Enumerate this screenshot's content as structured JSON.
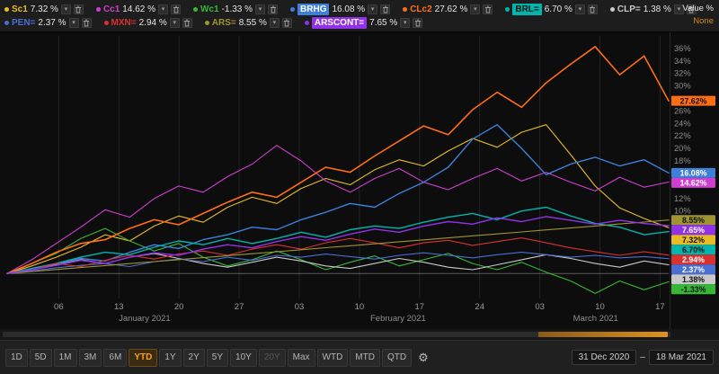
{
  "axis_header": {
    "primary": "Value %",
    "secondary": "None"
  },
  "legend": {
    "rows": [
      [
        "Sc1",
        "Cc1",
        "Wc1",
        "BRHG",
        "CLc2",
        "BRL=",
        "CLP="
      ],
      [
        "PEN=",
        "MXN=",
        "ARS=",
        "ARSCONT="
      ]
    ],
    "icons": {
      "chevron": "▾",
      "delete": "trash-icon"
    }
  },
  "toolbar": {
    "periods": [
      "1D",
      "5D",
      "1M",
      "3M",
      "6M",
      "YTD",
      "1Y",
      "2Y",
      "5Y",
      "10Y",
      "20Y",
      "Max",
      "WTD",
      "MTD",
      "QTD"
    ],
    "active": "YTD",
    "disabled": [
      "20Y"
    ],
    "settings_icon": "⚙",
    "date_range": {
      "start": "31 Dec 2020",
      "separator": "–",
      "end": "18 Mar 2021"
    }
  },
  "chart_data": {
    "type": "line",
    "title": "",
    "ylabel": "Value %",
    "legend_position": "top",
    "grid": "vertical-weekly",
    "ylim": [
      -4,
      38
    ],
    "y_tick_step": 2,
    "total_days": 77,
    "x_range": [
      "31 Dec 2020",
      "18 Mar 2021"
    ],
    "x_ticks": [
      {
        "day": 6,
        "label": "06"
      },
      {
        "day": 13,
        "label": "13"
      },
      {
        "day": 20,
        "label": "20"
      },
      {
        "day": 27,
        "label": "27"
      },
      {
        "day": 34,
        "label": "03"
      },
      {
        "day": 41,
        "label": "10"
      },
      {
        "day": 48,
        "label": "17"
      },
      {
        "day": 55,
        "label": "24"
      },
      {
        "day": 62,
        "label": "03"
      },
      {
        "day": 69,
        "label": "10"
      },
      {
        "day": 76,
        "label": "17"
      }
    ],
    "months": [
      {
        "label": "January 2021",
        "day": 16
      },
      {
        "label": "February 2021",
        "day": 45.5
      },
      {
        "label": "March 2021",
        "day": 68.5
      }
    ],
    "series": [
      {
        "name": "Sc1",
        "color": "#e8bc26",
        "label_text": "#111111",
        "highlight": false,
        "value_label": "7.32 %",
        "last_value": 7.32,
        "values": [
          0,
          1.2,
          2.6,
          4.2,
          6.2,
          5.2,
          7.6,
          9.2,
          8.2,
          10.6,
          12.2,
          11.2,
          13.6,
          15.2,
          14.2,
          16.6,
          18.2,
          17.2,
          19.6,
          21.6,
          20.2,
          22.6,
          23.8,
          19.0,
          14.0,
          10.5,
          8.8,
          7.32
        ]
      },
      {
        "name": "Cc1",
        "color": "#cf3ecf",
        "label_text": "#ffffff",
        "highlight": false,
        "value_label": "14.62 %",
        "last_value": 14.62,
        "values": [
          0,
          2.2,
          4.8,
          7.4,
          10.2,
          9.0,
          12.0,
          14.0,
          13.0,
          15.5,
          17.5,
          20.5,
          18.0,
          14.8,
          13.0,
          15.2,
          16.8,
          14.6,
          13.4,
          15.2,
          16.8,
          14.8,
          16.2,
          14.6,
          13.2,
          15.4,
          13.8,
          14.62
        ]
      },
      {
        "name": "Wc1",
        "color": "#36b836",
        "label_text": "#111111",
        "highlight": false,
        "value_label": "-1.33 %",
        "last_value": -1.33,
        "values": [
          0,
          1.6,
          3.2,
          5.6,
          7.2,
          5.2,
          3.6,
          4.8,
          2.6,
          1.2,
          2.2,
          3.6,
          2.2,
          0.6,
          1.8,
          2.8,
          1.2,
          2.2,
          3.2,
          1.6,
          0.6,
          1.8,
          0.2,
          -1.2,
          -3.2,
          -1.2,
          -2.6,
          -1.33
        ]
      },
      {
        "name": "BRHG",
        "color": "#3d7fd9",
        "label_text": "#ffffff",
        "highlight": true,
        "value_label": "16.08 %",
        "last_value": 16.08,
        "values": [
          0,
          0.6,
          1.6,
          2.4,
          2.0,
          3.4,
          4.6,
          4.0,
          5.4,
          6.2,
          7.4,
          7.0,
          8.6,
          9.8,
          11.2,
          10.6,
          12.8,
          14.6,
          17.0,
          21.5,
          23.8,
          20.0,
          15.8,
          17.5,
          18.6,
          17.2,
          18.2,
          16.08
        ]
      },
      {
        "name": "CLc2",
        "color": "#ff6e14",
        "label_text": "#111111",
        "highlight": false,
        "value_label": "27.62 %",
        "last_value": 27.62,
        "values": [
          0,
          1.6,
          3.4,
          4.8,
          5.4,
          7.2,
          8.6,
          7.8,
          9.6,
          11.4,
          13.0,
          12.2,
          14.6,
          17.0,
          16.2,
          18.8,
          21.2,
          23.6,
          22.2,
          26.2,
          29.0,
          26.6,
          30.5,
          33.5,
          36.3,
          31.8,
          34.8,
          27.62
        ]
      },
      {
        "name": "BRL=",
        "color": "#00b5ad",
        "label_text": "#111111",
        "highlight": true,
        "value_label": "6.70 %",
        "last_value": 6.7,
        "values": [
          0,
          0.8,
          1.6,
          2.6,
          3.4,
          3.0,
          4.2,
          5.2,
          4.6,
          5.6,
          4.8,
          5.6,
          6.6,
          5.8,
          7.0,
          7.6,
          7.2,
          8.2,
          9.0,
          9.6,
          8.6,
          10.0,
          10.6,
          9.2,
          8.0,
          7.4,
          6.2,
          6.7
        ]
      },
      {
        "name": "CLP=",
        "color": "#c9c9c9",
        "label_text": "#111111",
        "highlight": false,
        "value_label": "1.38 %",
        "last_value": 1.38,
        "values": [
          0,
          0.6,
          1.4,
          2.2,
          1.6,
          2.6,
          3.2,
          2.4,
          1.6,
          1.0,
          1.8,
          2.6,
          2.0,
          1.2,
          0.8,
          1.6,
          2.4,
          1.8,
          1.0,
          0.6,
          1.4,
          2.2,
          3.0,
          2.4,
          1.6,
          1.0,
          2.0,
          1.38
        ]
      },
      {
        "name": "PEN=",
        "color": "#4a6fd4",
        "label_text": "#ffffff",
        "highlight": false,
        "value_label": "2.37 %",
        "last_value": 2.37,
        "values": [
          0,
          0.4,
          0.9,
          1.3,
          1.6,
          1.1,
          1.9,
          2.3,
          1.9,
          2.6,
          2.1,
          2.9,
          2.6,
          3.1,
          2.7,
          2.3,
          2.9,
          3.3,
          2.9,
          2.5,
          3.0,
          3.4,
          3.0,
          2.6,
          2.9,
          2.5,
          2.7,
          2.37
        ]
      },
      {
        "name": "MXN=",
        "color": "#d93030",
        "label_text": "#ffffff",
        "highlight": false,
        "value_label": "2.94 %",
        "last_value": 2.94,
        "values": [
          0,
          0.6,
          1.6,
          1.1,
          2.1,
          2.9,
          2.3,
          3.1,
          3.6,
          2.9,
          3.9,
          4.6,
          3.9,
          4.9,
          5.6,
          4.9,
          4.1,
          4.9,
          5.3,
          4.5,
          5.1,
          5.7,
          4.9,
          4.1,
          3.5,
          2.9,
          3.5,
          2.94
        ]
      },
      {
        "name": "ARS=",
        "color": "#9e9431",
        "label_text": "#111111",
        "highlight": false,
        "value_label": "8.55 %",
        "last_value": 8.55,
        "values": [
          0,
          0.32,
          0.63,
          0.95,
          1.27,
          1.58,
          1.9,
          2.22,
          2.53,
          2.85,
          3.17,
          3.48,
          3.8,
          4.12,
          4.43,
          4.75,
          5.07,
          5.38,
          5.7,
          6.02,
          6.33,
          6.65,
          6.97,
          7.28,
          7.6,
          7.92,
          8.23,
          8.55
        ]
      },
      {
        "name": "ARSCONT=",
        "color": "#9232e8",
        "label_text": "#ffffff",
        "highlight": true,
        "value_label": "7.65 %",
        "last_value": 7.65,
        "values": [
          0,
          0.6,
          1.3,
          2.1,
          1.6,
          2.6,
          3.3,
          2.9,
          3.9,
          4.6,
          4.1,
          5.1,
          5.9,
          5.3,
          6.3,
          7.1,
          6.6,
          7.6,
          8.3,
          7.9,
          8.9,
          8.3,
          9.1,
          8.5,
          7.9,
          8.5,
          8.0,
          7.65
        ]
      }
    ]
  }
}
